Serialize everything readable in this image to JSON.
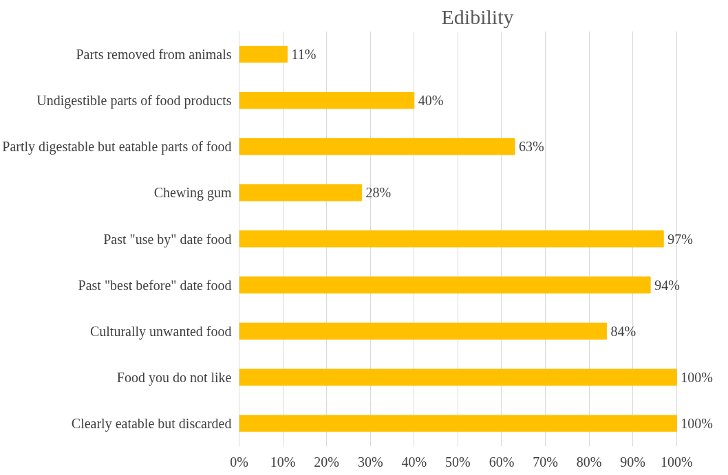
{
  "chart_data": {
    "type": "bar",
    "orientation": "horizontal",
    "title": "Edibility",
    "categories": [
      "Parts removed from animals",
      "Undigestible parts of food products",
      "Partly digestable but eatable parts of food",
      "Chewing gum",
      "Past \"use by\" date food",
      "Past \"best before\" date food",
      "Culturally unwanted food",
      "Food you do not like",
      "Clearly eatable but discarded"
    ],
    "values": [
      11,
      40,
      63,
      28,
      97,
      94,
      84,
      100,
      100
    ],
    "value_labels": [
      "11%",
      "40%",
      "63%",
      "28%",
      "97%",
      "94%",
      "84%",
      "100%",
      "100%"
    ],
    "color": "#ffc000",
    "xlim": [
      0,
      100
    ],
    "xticks": [
      {
        "value": 0,
        "label": "0%"
      },
      {
        "value": 10,
        "label": "10%"
      },
      {
        "value": 20,
        "label": "20%"
      },
      {
        "value": 30,
        "label": "30%"
      },
      {
        "value": 40,
        "label": "40%"
      },
      {
        "value": 50,
        "label": "50%"
      },
      {
        "value": 60,
        "label": "60%"
      },
      {
        "value": 70,
        "label": "70%"
      },
      {
        "value": 80,
        "label": "80%"
      },
      {
        "value": 90,
        "label": "90%"
      },
      {
        "value": 100,
        "label": "100%"
      }
    ],
    "grid": "x"
  }
}
